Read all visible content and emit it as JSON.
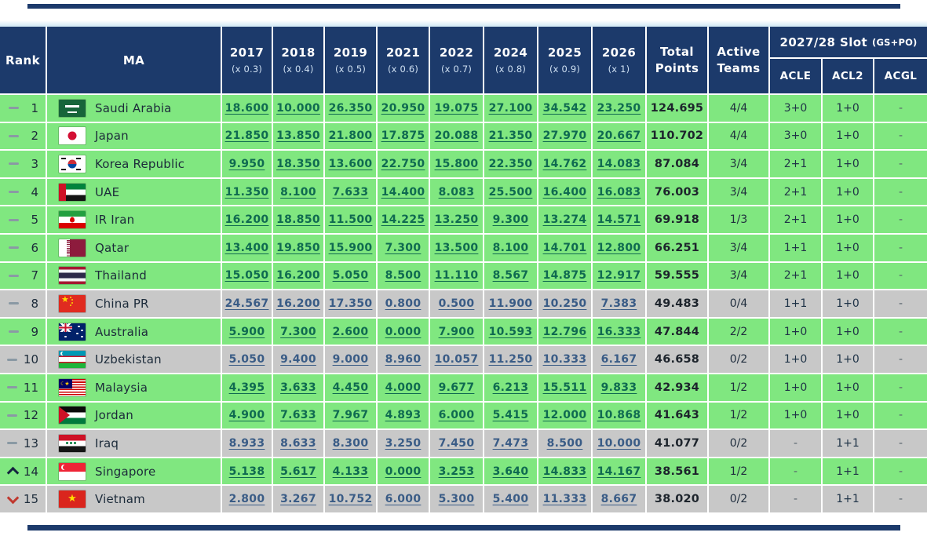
{
  "header": {
    "rank_label": "Rank",
    "ma_label": "MA",
    "years": [
      {
        "year": "2017",
        "mult": "(x 0.3)"
      },
      {
        "year": "2018",
        "mult": "(x 0.4)"
      },
      {
        "year": "2019",
        "mult": "(x 0.5)"
      },
      {
        "year": "2021",
        "mult": "(x 0.6)"
      },
      {
        "year": "2022",
        "mult": "(x 0.7)"
      },
      {
        "year": "2024",
        "mult": "(x 0.8)"
      },
      {
        "year": "2025",
        "mult": "(x 0.9)"
      },
      {
        "year": "2026",
        "mult": "(x 1)"
      }
    ],
    "total_label": "Total Points",
    "active_label": "Active Teams",
    "slot_title": "2027/28 Slot",
    "slot_suffix": "(GS+PO)",
    "slot_cols": [
      "ACLE",
      "ACL2",
      "ACGL"
    ]
  },
  "rows": [
    {
      "movement": "same",
      "rank": "1",
      "flag": "sa",
      "country": "Saudi Arabia",
      "values": [
        "18.600",
        "10.000",
        "26.350",
        "20.950",
        "19.075",
        "27.100",
        "34.542",
        "23.250"
      ],
      "total": "124.695",
      "active": "4/4",
      "acle": "3+0",
      "acl2": "1+0",
      "acgl": "-",
      "row_color": "green"
    },
    {
      "movement": "same",
      "rank": "2",
      "flag": "jp",
      "country": "Japan",
      "values": [
        "21.850",
        "13.850",
        "21.800",
        "17.875",
        "20.088",
        "21.350",
        "27.970",
        "20.667"
      ],
      "total": "110.702",
      "active": "4/4",
      "acle": "3+0",
      "acl2": "1+0",
      "acgl": "-",
      "row_color": "green"
    },
    {
      "movement": "same",
      "rank": "3",
      "flag": "kr",
      "country": "Korea Republic",
      "values": [
        "9.950",
        "18.350",
        "13.600",
        "22.750",
        "15.800",
        "22.350",
        "14.762",
        "14.083"
      ],
      "total": "87.084",
      "active": "3/4",
      "acle": "2+1",
      "acl2": "1+0",
      "acgl": "-",
      "row_color": "green"
    },
    {
      "movement": "same",
      "rank": "4",
      "flag": "ae",
      "country": "UAE",
      "values": [
        "11.350",
        "8.100",
        "7.633",
        "14.400",
        "8.083",
        "25.500",
        "16.400",
        "16.083"
      ],
      "total": "76.003",
      "active": "3/4",
      "acle": "2+1",
      "acl2": "1+0",
      "acgl": "-",
      "row_color": "green"
    },
    {
      "movement": "same",
      "rank": "5",
      "flag": "ir",
      "country": "IR Iran",
      "values": [
        "16.200",
        "18.850",
        "11.500",
        "14.225",
        "13.250",
        "9.300",
        "13.274",
        "14.571"
      ],
      "total": "69.918",
      "active": "1/3",
      "acle": "2+1",
      "acl2": "1+0",
      "acgl": "-",
      "row_color": "green"
    },
    {
      "movement": "same",
      "rank": "6",
      "flag": "qa",
      "country": "Qatar",
      "values": [
        "13.400",
        "19.850",
        "15.900",
        "7.300",
        "13.500",
        "8.100",
        "14.701",
        "12.800"
      ],
      "total": "66.251",
      "active": "3/4",
      "acle": "1+1",
      "acl2": "1+0",
      "acgl": "-",
      "row_color": "green"
    },
    {
      "movement": "same",
      "rank": "7",
      "flag": "th",
      "country": "Thailand",
      "values": [
        "15.050",
        "16.200",
        "5.050",
        "8.500",
        "11.110",
        "8.567",
        "14.875",
        "12.917"
      ],
      "total": "59.555",
      "active": "3/4",
      "acle": "2+1",
      "acl2": "1+0",
      "acgl": "-",
      "row_color": "green"
    },
    {
      "movement": "same",
      "rank": "8",
      "flag": "cn",
      "country": "China PR",
      "values": [
        "24.567",
        "16.200",
        "17.350",
        "0.800",
        "0.500",
        "11.900",
        "10.250",
        "7.383"
      ],
      "total": "49.483",
      "active": "0/4",
      "acle": "1+1",
      "acl2": "1+0",
      "acgl": "-",
      "row_color": "gray"
    },
    {
      "movement": "same",
      "rank": "9",
      "flag": "au",
      "country": "Australia",
      "values": [
        "5.900",
        "7.300",
        "2.600",
        "0.000",
        "7.900",
        "10.593",
        "12.796",
        "16.333"
      ],
      "total": "47.844",
      "active": "2/2",
      "acle": "1+0",
      "acl2": "1+0",
      "acgl": "-",
      "row_color": "green"
    },
    {
      "movement": "same",
      "rank": "10",
      "flag": "uz",
      "country": "Uzbekistan",
      "values": [
        "5.050",
        "9.400",
        "9.000",
        "8.960",
        "10.057",
        "11.250",
        "10.333",
        "6.167"
      ],
      "total": "46.658",
      "active": "0/2",
      "acle": "1+0",
      "acl2": "1+0",
      "acgl": "-",
      "row_color": "gray"
    },
    {
      "movement": "same",
      "rank": "11",
      "flag": "my",
      "country": "Malaysia",
      "values": [
        "4.395",
        "3.633",
        "4.450",
        "4.000",
        "9.677",
        "6.213",
        "15.511",
        "9.833"
      ],
      "total": "42.934",
      "active": "1/2",
      "acle": "1+0",
      "acl2": "1+0",
      "acgl": "-",
      "row_color": "green"
    },
    {
      "movement": "same",
      "rank": "12",
      "flag": "jo",
      "country": "Jordan",
      "values": [
        "4.900",
        "7.633",
        "7.967",
        "4.893",
        "6.000",
        "5.415",
        "12.000",
        "10.868"
      ],
      "total": "41.643",
      "active": "1/2",
      "acle": "1+0",
      "acl2": "1+0",
      "acgl": "-",
      "row_color": "green"
    },
    {
      "movement": "same",
      "rank": "13",
      "flag": "iq",
      "country": "Iraq",
      "values": [
        "8.933",
        "8.633",
        "8.300",
        "3.250",
        "7.450",
        "7.473",
        "8.500",
        "10.000"
      ],
      "total": "41.077",
      "active": "0/2",
      "acle": "-",
      "acl2": "1+1",
      "acgl": "-",
      "row_color": "gray"
    },
    {
      "movement": "up",
      "rank": "14",
      "flag": "sg",
      "country": "Singapore",
      "values": [
        "5.138",
        "5.617",
        "4.133",
        "0.000",
        "3.253",
        "3.640",
        "14.833",
        "14.167"
      ],
      "total": "38.561",
      "active": "1/2",
      "acle": "-",
      "acl2": "1+1",
      "acgl": "-",
      "row_color": "green"
    },
    {
      "movement": "down",
      "rank": "15",
      "flag": "vn",
      "country": "Vietnam",
      "values": [
        "2.800",
        "3.267",
        "10.752",
        "6.000",
        "5.300",
        "5.400",
        "11.333",
        "8.667"
      ],
      "total": "38.020",
      "active": "0/2",
      "acle": "-",
      "acl2": "1+1",
      "acgl": "-",
      "row_color": "gray"
    }
  ],
  "colors": {
    "header_bg": "#1C3A6B",
    "row_active": "#80E780",
    "row_inactive": "#C8C8C8",
    "link_on_green": "#0F6A50",
    "link_on_gray": "#3A5C86",
    "movement_up": "#15253F",
    "movement_down": "#C0392F"
  }
}
